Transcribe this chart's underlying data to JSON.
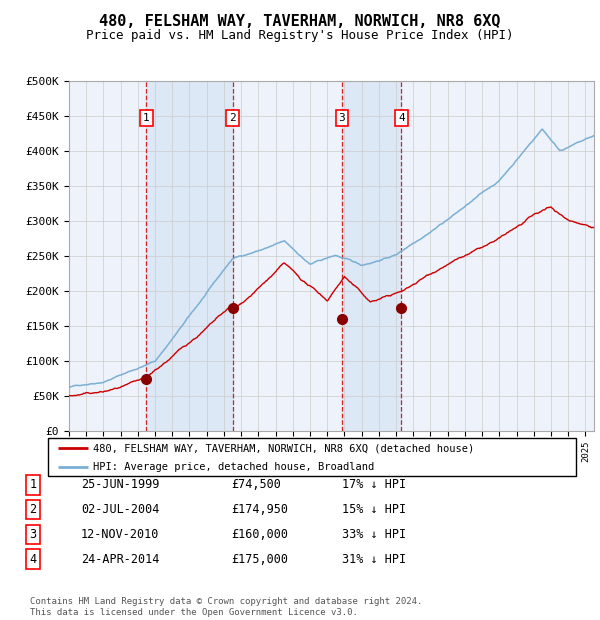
{
  "title": "480, FELSHAM WAY, TAVERHAM, NORWICH, NR8 6XQ",
  "subtitle": "Price paid vs. HM Land Registry's House Price Index (HPI)",
  "title_fontsize": 11,
  "subtitle_fontsize": 9,
  "ylim": [
    0,
    500000
  ],
  "yticks": [
    0,
    50000,
    100000,
    150000,
    200000,
    250000,
    300000,
    350000,
    400000,
    450000,
    500000
  ],
  "background_color": "#ffffff",
  "plot_bg_color": "#eef2fa",
  "grid_color": "#cccccc",
  "hpi_line_color": "#7bafd4",
  "price_line_color": "#cc0000",
  "marker_color": "#880000",
  "vline_color": "#cc0000",
  "shade_color": "#dce8f5",
  "transactions": [
    {
      "num": 1,
      "date_str": "25-JUN-1999",
      "date_x": 1999.48,
      "price": 74500,
      "pct": "17% ↓ HPI"
    },
    {
      "num": 2,
      "date_str": "02-JUL-2004",
      "date_x": 2004.5,
      "price": 174950,
      "pct": "15% ↓ HPI"
    },
    {
      "num": 3,
      "date_str": "12-NOV-2010",
      "date_x": 2010.86,
      "price": 160000,
      "pct": "33% ↓ HPI"
    },
    {
      "num": 4,
      "date_str": "24-APR-2014",
      "date_x": 2014.31,
      "price": 175000,
      "pct": "31% ↓ HPI"
    }
  ],
  "legend_line1": "480, FELSHAM WAY, TAVERHAM, NORWICH, NR8 6XQ (detached house)",
  "legend_line2": "HPI: Average price, detached house, Broadland",
  "footnote": "Contains HM Land Registry data © Crown copyright and database right 2024.\nThis data is licensed under the Open Government Licence v3.0.",
  "xmin": 1995,
  "xmax": 2025.5
}
